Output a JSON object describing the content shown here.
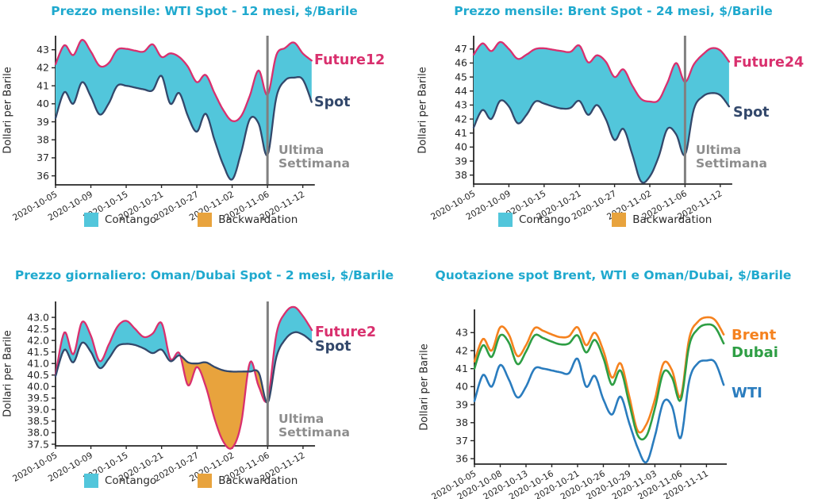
{
  "page": {
    "background": "#ffffff"
  },
  "colors": {
    "title": "#1fa9ce",
    "axis": "#262626",
    "annotation": "#8d8d8d",
    "vline": "#808080",
    "future_pink": "#d9306e",
    "spot_navy": "#33486b",
    "contango_cyan": "#52c6db",
    "backwardation_orange": "#e8a33d",
    "brent_orange": "#f5821f",
    "dubai_green": "#2e9e44",
    "wti_blue": "#2a7cbe"
  },
  "dates": [
    "2020-10-05",
    "2020-10-06",
    "2020-10-07",
    "2020-10-08",
    "2020-10-09",
    "2020-10-12",
    "2020-10-13",
    "2020-10-14",
    "2020-10-15",
    "2020-10-16",
    "2020-10-19",
    "2020-10-20",
    "2020-10-21",
    "2020-10-22",
    "2020-10-23",
    "2020-10-26",
    "2020-10-27",
    "2020-10-28",
    "2020-10-29",
    "2020-10-30",
    "2020-11-02",
    "2020-11-03",
    "2020-11-04",
    "2020-11-05",
    "2020-11-06",
    "2020-11-09",
    "2020-11-10",
    "2020-11-11",
    "2020-11-12",
    "2020-11-13"
  ],
  "chart_data": [
    {
      "type": "area",
      "title": "Prezzo mensile: WTI Spot - 12 mesi, $/Barile",
      "ylabel": "Dollari per Barile",
      "ylim": [
        35.5,
        43.78
      ],
      "yticks": [
        "43",
        "42",
        "41",
        "40",
        "39",
        "38",
        "37",
        "36"
      ],
      "xticks": [
        "2020-10-05",
        "2020-10-09",
        "2020-10-15",
        "2020-10-21",
        "2020-10-27",
        "2020-11-02",
        "2020-11-06",
        "2020-11-12"
      ],
      "series": [
        {
          "name": "Future12",
          "color": "#d9306e",
          "values": [
            42.2,
            43.25,
            42.7,
            43.55,
            42.9,
            42.1,
            42.25,
            43.0,
            43.05,
            42.95,
            42.9,
            43.3,
            42.6,
            42.8,
            42.6,
            42.05,
            41.2,
            41.6,
            40.6,
            39.65,
            39.05,
            39.3,
            40.45,
            41.85,
            40.5,
            42.7,
            43.1,
            43.4,
            42.8,
            42.4
          ]
        },
        {
          "name": "Spot",
          "color": "#33486b",
          "values": [
            39.2,
            40.65,
            40.0,
            41.2,
            40.4,
            39.4,
            40.0,
            41.0,
            41.0,
            40.9,
            40.8,
            40.75,
            41.55,
            40.0,
            40.6,
            39.3,
            38.45,
            39.45,
            38.0,
            36.6,
            35.8,
            37.25,
            39.15,
            38.9,
            37.15,
            40.35,
            41.3,
            41.45,
            41.35,
            40.1
          ]
        }
      ],
      "fill_colors": {
        "contango": "#52c6db",
        "backwardation": "#e8a33d"
      },
      "legend": [
        {
          "label": "Contango",
          "color": "#52c6db"
        },
        {
          "label": "Backwardation",
          "color": "#e8a33d"
        }
      ],
      "vline_date": "2020-11-06",
      "vline_color": "#808080",
      "annotation": {
        "lines": [
          "Ultima",
          "Settimana"
        ]
      }
    },
    {
      "type": "area",
      "title": "Prezzo mensile: Brent Spot - 24 mesi, $/Barile",
      "ylabel": "Dollari per Barile",
      "ylim": [
        37.36,
        47.95
      ],
      "yticks": [
        "47",
        "46",
        "45",
        "44",
        "43",
        "42",
        "41",
        "40",
        "39",
        "38"
      ],
      "xticks": [
        "2020-10-05",
        "2020-10-09",
        "2020-10-15",
        "2020-10-21",
        "2020-10-27",
        "2020-11-02",
        "2020-11-06",
        "2020-11-12"
      ],
      "series": [
        {
          "name": "Future24",
          "color": "#d9306e",
          "values": [
            46.6,
            47.4,
            46.85,
            47.5,
            47.0,
            46.3,
            46.6,
            47.0,
            47.05,
            46.95,
            46.85,
            46.8,
            47.25,
            46.05,
            46.55,
            46.1,
            45.0,
            45.55,
            44.4,
            43.45,
            43.25,
            43.35,
            44.6,
            46.0,
            44.65,
            45.9,
            46.6,
            47.05,
            46.9,
            46.1
          ]
        },
        {
          "name": "Spot",
          "color": "#33486b",
          "values": [
            41.4,
            42.65,
            42.0,
            43.3,
            42.9,
            41.7,
            42.3,
            43.25,
            43.1,
            42.9,
            42.75,
            42.8,
            43.3,
            42.3,
            43.0,
            42.0,
            40.5,
            41.3,
            39.5,
            37.55,
            37.9,
            39.3,
            41.3,
            40.9,
            39.45,
            42.7,
            43.6,
            43.85,
            43.7,
            42.9
          ]
        }
      ],
      "fill_colors": {
        "contango": "#52c6db",
        "backwardation": "#e8a33d"
      },
      "legend": [
        {
          "label": "Contango",
          "color": "#52c6db"
        },
        {
          "label": "Backwardation",
          "color": "#e8a33d"
        }
      ],
      "vline_date": "2020-11-06",
      "vline_color": "#808080",
      "annotation": {
        "lines": [
          "Ultima",
          "Settimana"
        ]
      }
    },
    {
      "type": "area",
      "title": "Prezzo giornaliero: Oman/Dubai Spot - 2 mesi, $/Barile",
      "ylabel": "Dollari per Barile",
      "ylim": [
        37.43,
        43.69
      ],
      "yticks": [
        "43.0",
        "42.5",
        "42.0",
        "41.5",
        "41.0",
        "40.5",
        "40.0",
        "39.5",
        "39.0",
        "38.5",
        "38.0",
        "37.5"
      ],
      "xticks": [
        "2020-10-05",
        "2020-10-09",
        "2020-10-15",
        "2020-10-21",
        "2020-10-27",
        "2020-11-02",
        "2020-11-06",
        "2020-11-12"
      ],
      "series": [
        {
          "name": "Future2",
          "color": "#d9306e",
          "values": [
            40.5,
            42.35,
            41.4,
            42.8,
            42.2,
            41.1,
            41.8,
            42.6,
            42.85,
            42.5,
            42.15,
            42.3,
            42.75,
            41.2,
            41.45,
            40.05,
            40.85,
            40.0,
            38.6,
            37.6,
            37.35,
            38.4,
            41.05,
            40.0,
            39.45,
            42.3,
            43.2,
            43.45,
            43.05,
            42.45
          ]
        },
        {
          "name": "Spot",
          "color": "#33486b",
          "values": [
            40.45,
            41.6,
            41.05,
            41.9,
            41.5,
            40.8,
            41.2,
            41.75,
            41.85,
            41.8,
            41.65,
            41.45,
            41.6,
            41.1,
            41.35,
            41.05,
            41.0,
            41.05,
            40.85,
            40.7,
            40.65,
            40.65,
            40.65,
            40.6,
            39.3,
            41.3,
            42.05,
            42.35,
            42.25,
            41.95
          ]
        }
      ],
      "fill_colors": {
        "contango": "#52c6db",
        "backwardation": "#e8a33d"
      },
      "legend": [
        {
          "label": "Contango",
          "color": "#52c6db"
        },
        {
          "label": "Backwardation",
          "color": "#e8a33d"
        }
      ],
      "vline_date": "2020-11-06",
      "vline_color": "#808080",
      "annotation": {
        "lines": [
          "Ultima",
          "Settimana"
        ]
      }
    },
    {
      "type": "line",
      "title": "Quotazione spot Brent, WTI e Oman/Dubai, $/Barile",
      "ylabel": "Dollari per Barile",
      "ylim": [
        35.7,
        44.29
      ],
      "yticks": [
        "43",
        "42",
        "41",
        "40",
        "39",
        "38",
        "37",
        "36"
      ],
      "xticks": [
        "2020-10-05",
        "2020-10-08",
        "2020-10-13",
        "2020-10-16",
        "2020-10-21",
        "2020-10-26",
        "2020-10-29",
        "2020-11-03",
        "2020-11-06",
        "2020-11-11"
      ],
      "series": [
        {
          "name": "Brent",
          "color": "#f5821f",
          "values": [
            41.4,
            42.65,
            42.0,
            43.3,
            42.9,
            41.7,
            42.3,
            43.25,
            43.1,
            42.9,
            42.75,
            42.8,
            43.3,
            42.3,
            43.0,
            42.0,
            40.5,
            41.3,
            39.5,
            37.55,
            37.9,
            39.3,
            41.3,
            40.9,
            39.45,
            42.7,
            43.6,
            43.85,
            43.7,
            42.9
          ]
        },
        {
          "name": "Dubai",
          "color": "#2e9e44",
          "values": [
            41.0,
            42.3,
            41.65,
            42.85,
            42.45,
            41.25,
            41.95,
            42.85,
            42.7,
            42.5,
            42.35,
            42.4,
            42.85,
            41.9,
            42.6,
            41.6,
            40.1,
            40.9,
            39.1,
            37.3,
            37.25,
            38.8,
            40.8,
            40.5,
            39.25,
            42.3,
            43.2,
            43.45,
            43.3,
            42.4
          ]
        },
        {
          "name": "WTI",
          "color": "#2a7cbe",
          "values": [
            39.2,
            40.65,
            40.0,
            41.2,
            40.4,
            39.4,
            40.0,
            41.0,
            41.0,
            40.9,
            40.8,
            40.75,
            41.55,
            40.0,
            40.6,
            39.3,
            38.45,
            39.45,
            38.0,
            36.6,
            35.8,
            37.25,
            39.15,
            38.9,
            37.15,
            40.35,
            41.3,
            41.45,
            41.35,
            40.1
          ]
        }
      ]
    }
  ]
}
